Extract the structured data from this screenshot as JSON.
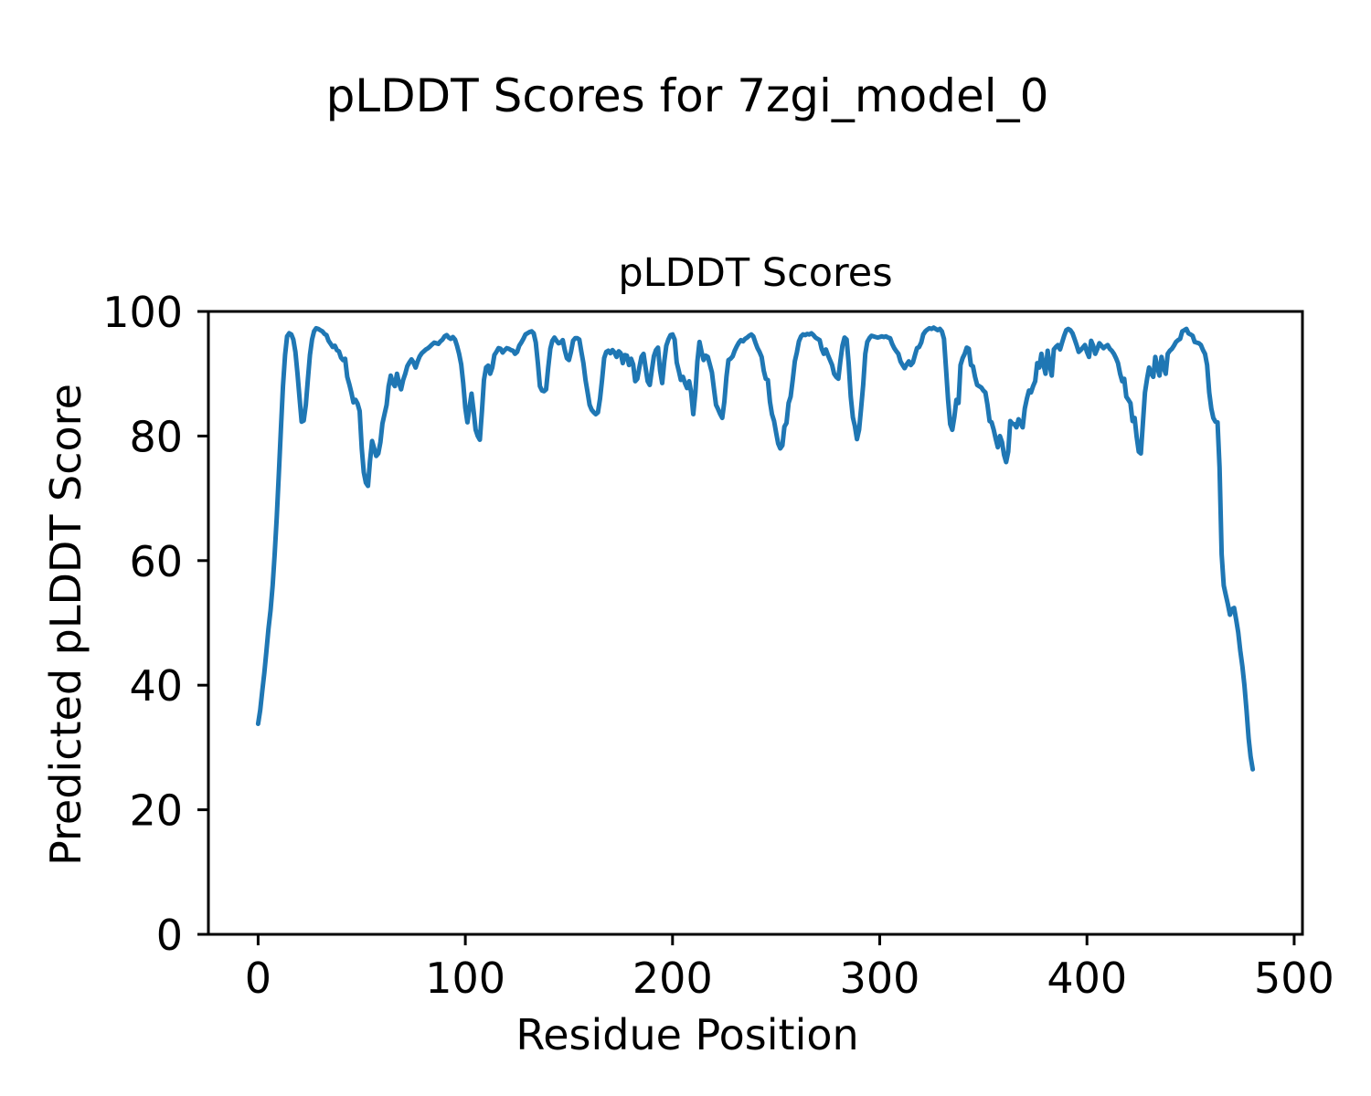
{
  "figure": {
    "suptitle": "pLDDT Scores for 7zgi_model_0",
    "background": "#ffffff",
    "text_color": "#000000"
  },
  "chart_data": {
    "type": "line",
    "title": "pLDDT Scores",
    "xlabel": "Residue Position",
    "ylabel": "Predicted pLDDT Score",
    "xlim": [
      -24,
      504
    ],
    "ylim": [
      0,
      100
    ],
    "x_ticks": [
      0,
      100,
      200,
      300,
      400,
      500
    ],
    "y_ticks": [
      0,
      20,
      40,
      60,
      80,
      100
    ],
    "grid": false,
    "legend_position": "none",
    "line_color": "#1f77b4",
    "line_width": 5,
    "axis_color": "#000000",
    "series": [
      {
        "name": "pLDDT",
        "x_start": 0,
        "x_step": 1,
        "values": [
          33.8,
          36.0,
          39.0,
          42.0,
          45.5,
          49.0,
          52.0,
          56.0,
          61.0,
          67.0,
          74.0,
          81.0,
          88.0,
          93.0,
          96.0,
          96.5,
          96.3,
          95.5,
          93.5,
          90.0,
          86.0,
          82.3,
          82.5,
          85.0,
          89.0,
          93.0,
          95.5,
          96.8,
          97.3,
          97.2,
          97.0,
          96.8,
          96.4,
          96.2,
          95.3,
          94.8,
          94.3,
          94.5,
          93.8,
          93.6,
          92.6,
          92.2,
          92.4,
          89.5,
          88.3,
          87.0,
          85.4,
          85.8,
          85.2,
          84.0,
          78.0,
          74.2,
          72.5,
          72.0,
          76.0,
          79.2,
          78.0,
          76.8,
          77.2,
          79.0,
          82.0,
          83.5,
          85.0,
          88.0,
          89.7,
          88.5,
          88.0,
          90.0,
          88.5,
          87.5,
          89.0,
          90.0,
          91.2,
          91.8,
          92.3,
          91.8,
          91.0,
          92.0,
          92.8,
          93.3,
          93.6,
          93.9,
          94.1,
          94.4,
          94.7,
          95.0,
          94.9,
          94.8,
          95.2,
          95.5,
          96.0,
          96.2,
          95.8,
          95.6,
          95.9,
          95.5,
          94.5,
          93.2,
          91.5,
          88.5,
          84.5,
          82.2,
          84.5,
          86.8,
          84.0,
          81.0,
          80.0,
          79.4,
          84.0,
          89.0,
          91.0,
          91.3,
          90.0,
          91.0,
          93.0,
          93.5,
          94.1,
          94.0,
          93.4,
          93.8,
          94.1,
          94.0,
          93.8,
          93.7,
          93.2,
          93.5,
          94.5,
          95.0,
          95.6,
          96.3,
          96.5,
          96.7,
          96.8,
          96.5,
          95.0,
          91.7,
          88.0,
          87.3,
          87.2,
          87.5,
          91.0,
          94.0,
          95.3,
          95.8,
          95.3,
          94.9,
          95.0,
          95.4,
          93.8,
          92.5,
          92.2,
          93.5,
          95.3,
          95.7,
          95.7,
          95.5,
          93.5,
          91.7,
          89.0,
          87.0,
          85.0,
          84.2,
          83.8,
          83.5,
          83.8,
          86.0,
          89.0,
          92.5,
          93.5,
          93.7,
          93.3,
          93.8,
          93.4,
          92.7,
          93.6,
          93.3,
          91.7,
          93.0,
          92.9,
          91.4,
          92.4,
          91.5,
          88.8,
          89.2,
          91.0,
          92.7,
          93.2,
          91.0,
          88.8,
          88.2,
          90.5,
          92.8,
          93.8,
          94.2,
          90.5,
          88.5,
          92.0,
          94.5,
          95.5,
          96.2,
          96.3,
          95.5,
          91.8,
          90.5,
          89.0,
          89.5,
          88.5,
          87.7,
          88.8,
          87.0,
          83.5,
          87.0,
          92.0,
          95.1,
          93.5,
          92.2,
          92.9,
          92.7,
          91.5,
          90.2,
          87.5,
          85.0,
          84.3,
          83.5,
          82.9,
          85.5,
          89.5,
          92.2,
          92.4,
          92.8,
          93.7,
          94.4,
          95.0,
          95.4,
          95.2,
          95.6,
          95.8,
          96.1,
          96.3,
          96.0,
          95.0,
          94.1,
          93.5,
          92.7,
          90.5,
          89.2,
          89.0,
          85.5,
          83.5,
          82.4,
          80.5,
          78.8,
          78.0,
          78.5,
          81.5,
          82.1,
          85.3,
          86.3,
          89.0,
          92.0,
          93.4,
          95.2,
          96.0,
          96.3,
          96.2,
          96.4,
          96.3,
          96.5,
          96.2,
          95.8,
          95.6,
          95.4,
          94.0,
          93.2,
          93.9,
          93.0,
          92.2,
          91.4,
          90.0,
          89.5,
          89.2,
          92.0,
          94.5,
          95.8,
          95.5,
          91.7,
          86.3,
          83.0,
          81.6,
          79.5,
          81.0,
          84.4,
          88.2,
          93.2,
          95.1,
          95.7,
          96.1,
          96.0,
          95.9,
          95.8,
          95.9,
          96.0,
          95.9,
          96.0,
          95.8,
          95.7,
          94.8,
          94.1,
          93.6,
          93.2,
          92.0,
          91.4,
          90.9,
          91.5,
          92.0,
          91.4,
          91.8,
          93.0,
          94.1,
          94.3,
          95.0,
          96.3,
          96.8,
          97.1,
          97.3,
          97.2,
          97.4,
          97.2,
          97.0,
          97.2,
          96.8,
          95.6,
          90.7,
          85.8,
          81.9,
          81.0,
          83.0,
          85.8,
          85.3,
          91.4,
          92.5,
          93.2,
          94.2,
          94.0,
          91.4,
          91.2,
          89.5,
          88.2,
          88.0,
          87.8,
          87.3,
          87.0,
          85.0,
          82.4,
          82.2,
          81.0,
          79.5,
          78.2,
          80.0,
          79.0,
          77.0,
          75.8,
          77.5,
          82.4,
          82.0,
          81.9,
          81.4,
          82.7,
          82.0,
          81.4,
          84.4,
          86.0,
          87.3,
          87.0,
          88.0,
          88.8,
          91.7,
          91.0,
          93.2,
          91.5,
          90.0,
          93.7,
          91.5,
          89.7,
          93.9,
          94.3,
          94.6,
          93.9,
          95.0,
          96.1,
          97.0,
          97.2,
          97.0,
          96.5,
          95.6,
          94.6,
          93.5,
          93.8,
          94.2,
          94.6,
          93.5,
          92.7,
          95.3,
          94.5,
          93.2,
          94.0,
          94.9,
          94.5,
          94.1,
          94.4,
          94.6,
          94.0,
          93.7,
          93.2,
          92.5,
          91.7,
          90.0,
          88.8,
          89.2,
          86.3,
          85.8,
          85.3,
          82.4,
          82.9,
          79.9,
          77.5,
          77.2,
          82.0,
          87.0,
          89.2,
          91.0,
          90.0,
          89.5,
          92.7,
          91.0,
          89.7,
          92.7,
          91.0,
          90.0,
          93.2,
          93.7,
          94.0,
          94.5,
          95.1,
          95.4,
          95.6,
          96.8,
          97.0,
          97.2,
          96.5,
          96.3,
          96.1,
          95.1,
          95.0,
          94.9,
          94.6,
          93.8,
          93.2,
          91.4,
          87.0,
          84.4,
          82.9,
          82.3,
          82.2,
          75.0,
          61.0,
          56.0,
          54.5,
          53.0,
          51.3,
          52.2,
          52.4,
          50.5,
          48.5,
          45.5,
          43.0,
          40.0,
          36.0,
          31.5,
          28.5,
          26.5
        ]
      }
    ]
  }
}
